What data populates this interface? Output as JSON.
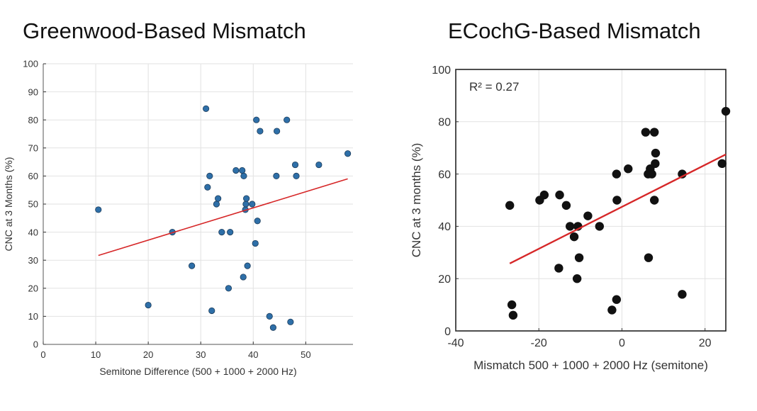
{
  "chart_data": [
    {
      "type": "scatter",
      "title": "Greenwood-Based Mismatch",
      "xlabel": "Semitone Difference (500 + 1000 + 2000 Hz)",
      "ylabel": "CNC at 3 Months (%)",
      "xlim": [
        0,
        59
      ],
      "ylim": [
        0,
        100
      ],
      "xticks": [
        0,
        10,
        20,
        30,
        40,
        50
      ],
      "yticks": [
        0,
        10,
        20,
        30,
        40,
        50,
        60,
        70,
        80,
        90,
        100
      ],
      "grid": true,
      "marker_color": "#2e6fa8",
      "line_color": "#d62728",
      "points": [
        {
          "x": 10.5,
          "y": 48
        },
        {
          "x": 20.0,
          "y": 14
        },
        {
          "x": 24.6,
          "y": 40
        },
        {
          "x": 28.3,
          "y": 28
        },
        {
          "x": 31.0,
          "y": 84
        },
        {
          "x": 31.3,
          "y": 56
        },
        {
          "x": 31.7,
          "y": 60
        },
        {
          "x": 32.1,
          "y": 12
        },
        {
          "x": 33.0,
          "y": 50
        },
        {
          "x": 33.3,
          "y": 52
        },
        {
          "x": 34.0,
          "y": 40
        },
        {
          "x": 35.3,
          "y": 20
        },
        {
          "x": 35.6,
          "y": 40
        },
        {
          "x": 36.7,
          "y": 62
        },
        {
          "x": 37.9,
          "y": 62
        },
        {
          "x": 38.1,
          "y": 24
        },
        {
          "x": 38.2,
          "y": 60
        },
        {
          "x": 38.5,
          "y": 48
        },
        {
          "x": 38.6,
          "y": 50
        },
        {
          "x": 38.7,
          "y": 52
        },
        {
          "x": 38.9,
          "y": 28
        },
        {
          "x": 39.8,
          "y": 50
        },
        {
          "x": 40.4,
          "y": 36
        },
        {
          "x": 40.6,
          "y": 80
        },
        {
          "x": 40.8,
          "y": 44
        },
        {
          "x": 41.3,
          "y": 76
        },
        {
          "x": 43.1,
          "y": 10
        },
        {
          "x": 43.8,
          "y": 6
        },
        {
          "x": 44.4,
          "y": 60
        },
        {
          "x": 44.5,
          "y": 76
        },
        {
          "x": 46.4,
          "y": 80
        },
        {
          "x": 47.1,
          "y": 8
        },
        {
          "x": 48.0,
          "y": 64
        },
        {
          "x": 48.2,
          "y": 60
        },
        {
          "x": 52.5,
          "y": 64
        },
        {
          "x": 58.0,
          "y": 68
        }
      ],
      "fit_line": {
        "x": [
          10.5,
          58.0
        ],
        "y": [
          31.7,
          59.0
        ]
      }
    },
    {
      "type": "scatter",
      "title": "ECochG-Based Mismatch",
      "xlabel": "Mismatch 500 + 1000 + 2000 Hz (semitone)",
      "ylabel": "CNC at 3 months (%)",
      "annotation": "R² = 0.27",
      "xlim": [
        -40,
        25
      ],
      "ylim": [
        0,
        100
      ],
      "xticks": [
        -40,
        -20,
        0,
        20
      ],
      "yticks": [
        0,
        20,
        40,
        60,
        80,
        100
      ],
      "grid": true,
      "marker_color": "#111111",
      "line_color": "#d62728",
      "points": [
        {
          "x": -27.0,
          "y": 48
        },
        {
          "x": -26.5,
          "y": 10
        },
        {
          "x": -26.2,
          "y": 6
        },
        {
          "x": -19.8,
          "y": 50
        },
        {
          "x": -18.7,
          "y": 52
        },
        {
          "x": -15.0,
          "y": 52
        },
        {
          "x": -15.2,
          "y": 24
        },
        {
          "x": -13.4,
          "y": 48
        },
        {
          "x": -12.5,
          "y": 40
        },
        {
          "x": -11.5,
          "y": 36
        },
        {
          "x": -10.8,
          "y": 20
        },
        {
          "x": -10.6,
          "y": 40
        },
        {
          "x": -10.3,
          "y": 28
        },
        {
          "x": -8.2,
          "y": 44
        },
        {
          "x": -5.4,
          "y": 40
        },
        {
          "x": -2.4,
          "y": 8
        },
        {
          "x": -1.3,
          "y": 12
        },
        {
          "x": -1.2,
          "y": 50
        },
        {
          "x": -1.3,
          "y": 60
        },
        {
          "x": 1.5,
          "y": 62
        },
        {
          "x": 5.7,
          "y": 76
        },
        {
          "x": 6.3,
          "y": 60
        },
        {
          "x": 6.4,
          "y": 28
        },
        {
          "x": 6.8,
          "y": 62
        },
        {
          "x": 7.2,
          "y": 60
        },
        {
          "x": 7.8,
          "y": 76
        },
        {
          "x": 7.8,
          "y": 50
        },
        {
          "x": 8.0,
          "y": 64
        },
        {
          "x": 8.1,
          "y": 68
        },
        {
          "x": 14.5,
          "y": 60
        },
        {
          "x": 14.5,
          "y": 14
        },
        {
          "x": 24.1,
          "y": 64
        },
        {
          "x": 25.0,
          "y": 84
        }
      ],
      "fit_line": {
        "x": [
          -27.0,
          25.0
        ],
        "y": [
          25.8,
          67.5
        ]
      }
    }
  ]
}
